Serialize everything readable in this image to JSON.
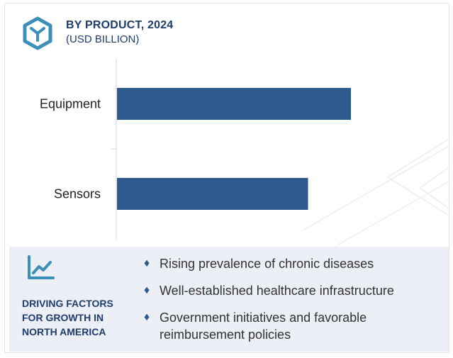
{
  "header": {
    "title": "BY PRODUCT, 2024",
    "subtitle": "(USD BILLION)"
  },
  "colors": {
    "bar": "#2d5a8c",
    "accent": "#3b8fb8",
    "title": "#1f3d6b",
    "panel_bg": "#eaeef4"
  },
  "icons": {
    "logo": "hexagon-y-logo-icon",
    "trend": "line-chart-trend-icon",
    "bullet": "diamond-bullet-icon"
  },
  "chart_data": {
    "type": "bar",
    "orientation": "horizontal",
    "title": "BY PRODUCT, 2024",
    "subtitle": "(USD BILLION)",
    "categories": [
      "Equipment",
      "Sensors"
    ],
    "values": [
      0.6,
      0.49
    ],
    "xlim": [
      0,
      0.8
    ],
    "grid": false,
    "legend": "none"
  },
  "panel": {
    "label": "DRIVING FACTORS FOR GROWTH IN NORTH AMERICA",
    "factors": [
      "Rising prevalence of chronic diseases",
      "Well-established healthcare infrastructure",
      "Government initiatives and favorable reimbursement policies"
    ]
  }
}
